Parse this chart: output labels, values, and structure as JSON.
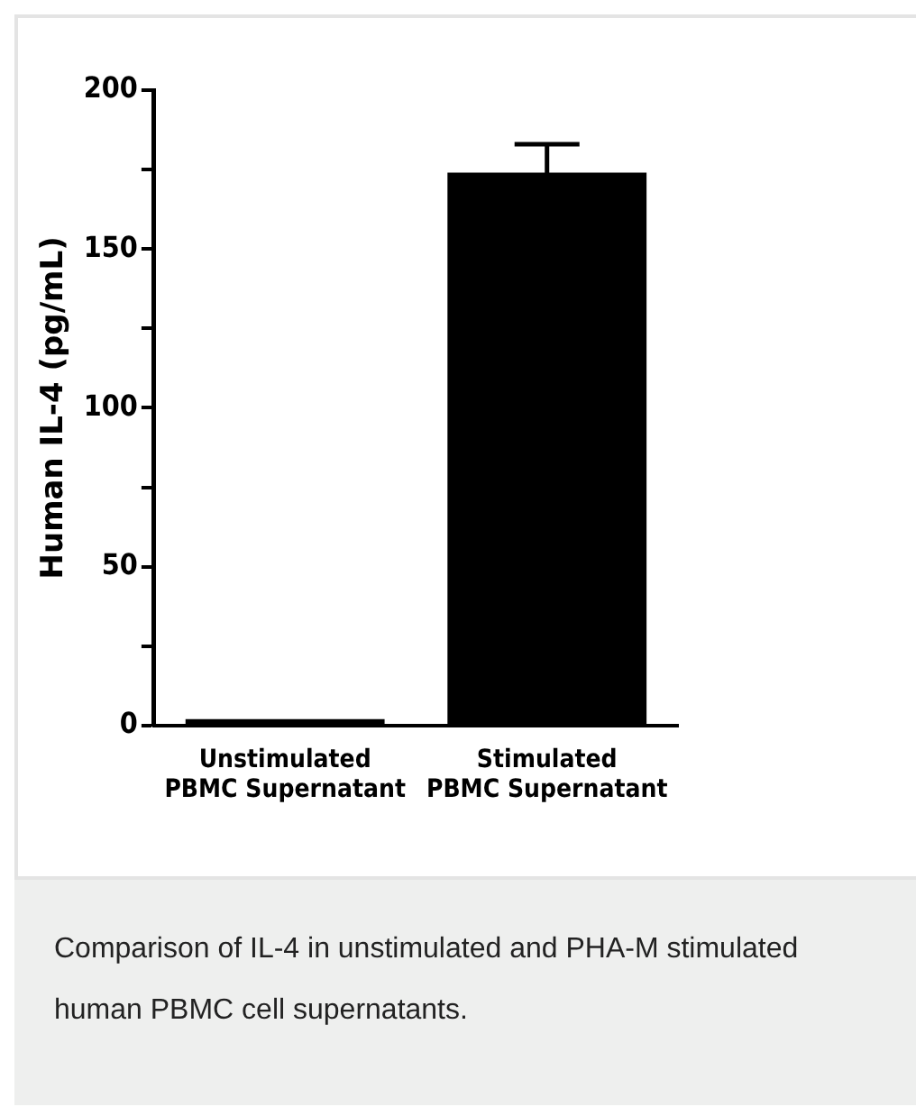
{
  "chart_data": {
    "type": "bar",
    "ylabel": "Human IL-4 (pg/mL)",
    "categories": [
      "Unstimulated PBMC Supernatant",
      "Stimulated PBMC Supernatant"
    ],
    "values": [
      2,
      174
    ],
    "errors": [
      null,
      9
    ],
    "color": "#000000",
    "ylim": [
      0,
      200
    ],
    "yticks": [
      0,
      {
        "value": 25,
        "label": null
      },
      50,
      {
        "value": 75,
        "label": null
      },
      100,
      {
        "value": 125,
        "label": null
      },
      150,
      {
        "value": 175,
        "label": null
      },
      200
    ],
    "grid": false,
    "legend": false,
    "annotations": [
      "Comparison of IL-4 in unstimulated and PHA-M stimulated human PBMC cell supernatants."
    ]
  }
}
